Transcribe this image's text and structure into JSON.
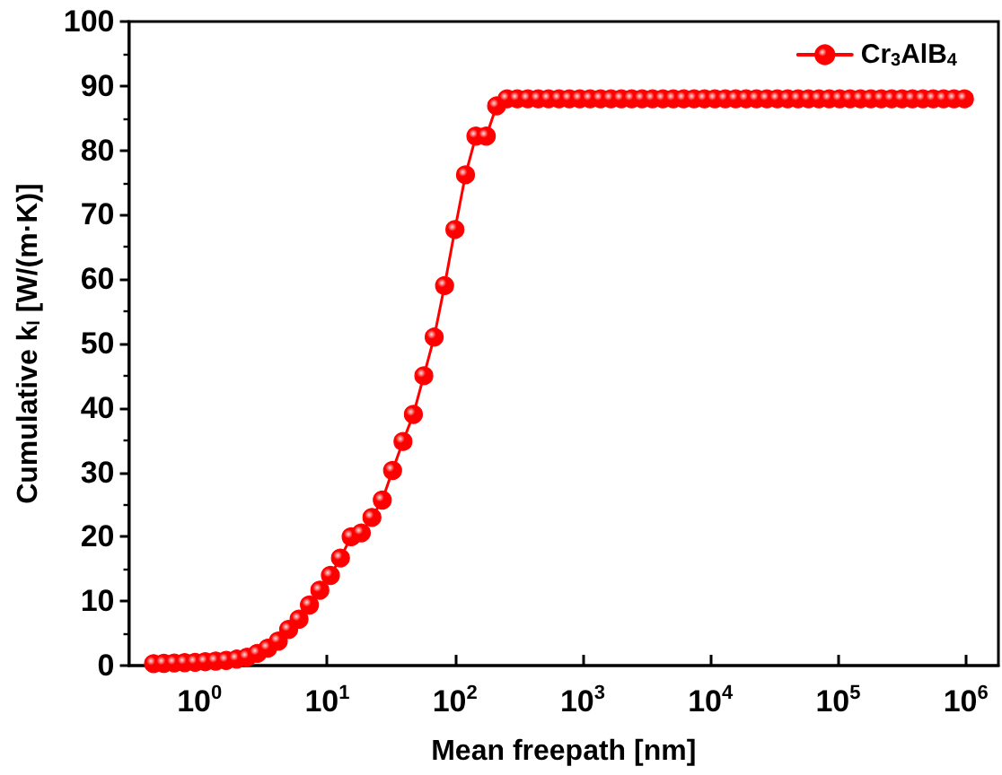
{
  "chart_data": {
    "type": "line",
    "xlabel": "Mean freepath [nm]",
    "ylabel": "Cumulative k$_{l}$ [W/(m·K)]",
    "log": "x",
    "xlim": [
      0.28,
      1800000
    ],
    "xticks": [
      {
        "value": 1,
        "label": "10$^{0}$"
      },
      {
        "value": 10,
        "label": "10$^{1}$"
      },
      {
        "value": 100,
        "label": "10$^{2}$"
      },
      {
        "value": 1000,
        "label": "10$^{3}$"
      },
      {
        "value": 10000,
        "label": "10$^{4}$"
      },
      {
        "value": 100000,
        "label": "10$^{5}$"
      },
      {
        "value": 1000000,
        "label": "10$^{6}$"
      }
    ],
    "ylim": [
      0,
      100
    ],
    "yticks": [
      0,
      10,
      20,
      30,
      40,
      50,
      60,
      70,
      80,
      90,
      100
    ],
    "grid": false,
    "legend": "top right",
    "marker": "circle",
    "line_style": "solid",
    "x": [
      0.437,
      0.526,
      0.635,
      0.766,
      0.924,
      1.11,
      1.34,
      1.62,
      1.96,
      2.36,
      2.84,
      3.43,
      4.14,
      4.99,
      6.02,
      7.26,
      8.76,
      10.6,
      12.7,
      15.4,
      18.5,
      22.4,
      27.0,
      32.5,
      39.2,
      47.3,
      57.1,
      68.8,
      83.0,
      100,
      121,
      146,
      176,
      212,
      256,
      308,
      372,
      449,
      541,
      653,
      787,
      949,
      1145,
      1381,
      1666,
      2009,
      2423,
      2923,
      3525,
      4252,
      5129,
      6185,
      7462,
      9000,
      10855,
      13092,
      15791,
      19047,
      22974,
      27710,
      33420,
      40310,
      48620,
      58640,
      70730,
      85310,
      102900,
      124100,
      149700,
      180600,
      217800,
      262700,
      316800,
      382200,
      460900,
      555900,
      670600,
      808800,
      975500
    ],
    "series": [
      {
        "name": "Cr$_{3}$AlB$_{4}$",
        "color": "#ff0000",
        "values": [
          0.3,
          0.35,
          0.4,
          0.45,
          0.5,
          0.6,
          0.7,
          0.8,
          1.0,
          1.3,
          1.9,
          2.7,
          3.8,
          5.6,
          7.2,
          9.4,
          11.7,
          14.0,
          16.7,
          20.0,
          20.6,
          23.0,
          25.7,
          30.3,
          34.8,
          39.0,
          45,
          51,
          59,
          67.7,
          76.2,
          82.2,
          82.2,
          86.9,
          88,
          88,
          88,
          88,
          88,
          88,
          88,
          88,
          88,
          88,
          88,
          88,
          88,
          88,
          88,
          88,
          88,
          88,
          88,
          88,
          88,
          88,
          88,
          88,
          88,
          88,
          88,
          88,
          88,
          88,
          88,
          88,
          88,
          88,
          88,
          88,
          88,
          88,
          88,
          88,
          88,
          88,
          88,
          88,
          88
        ]
      }
    ]
  }
}
